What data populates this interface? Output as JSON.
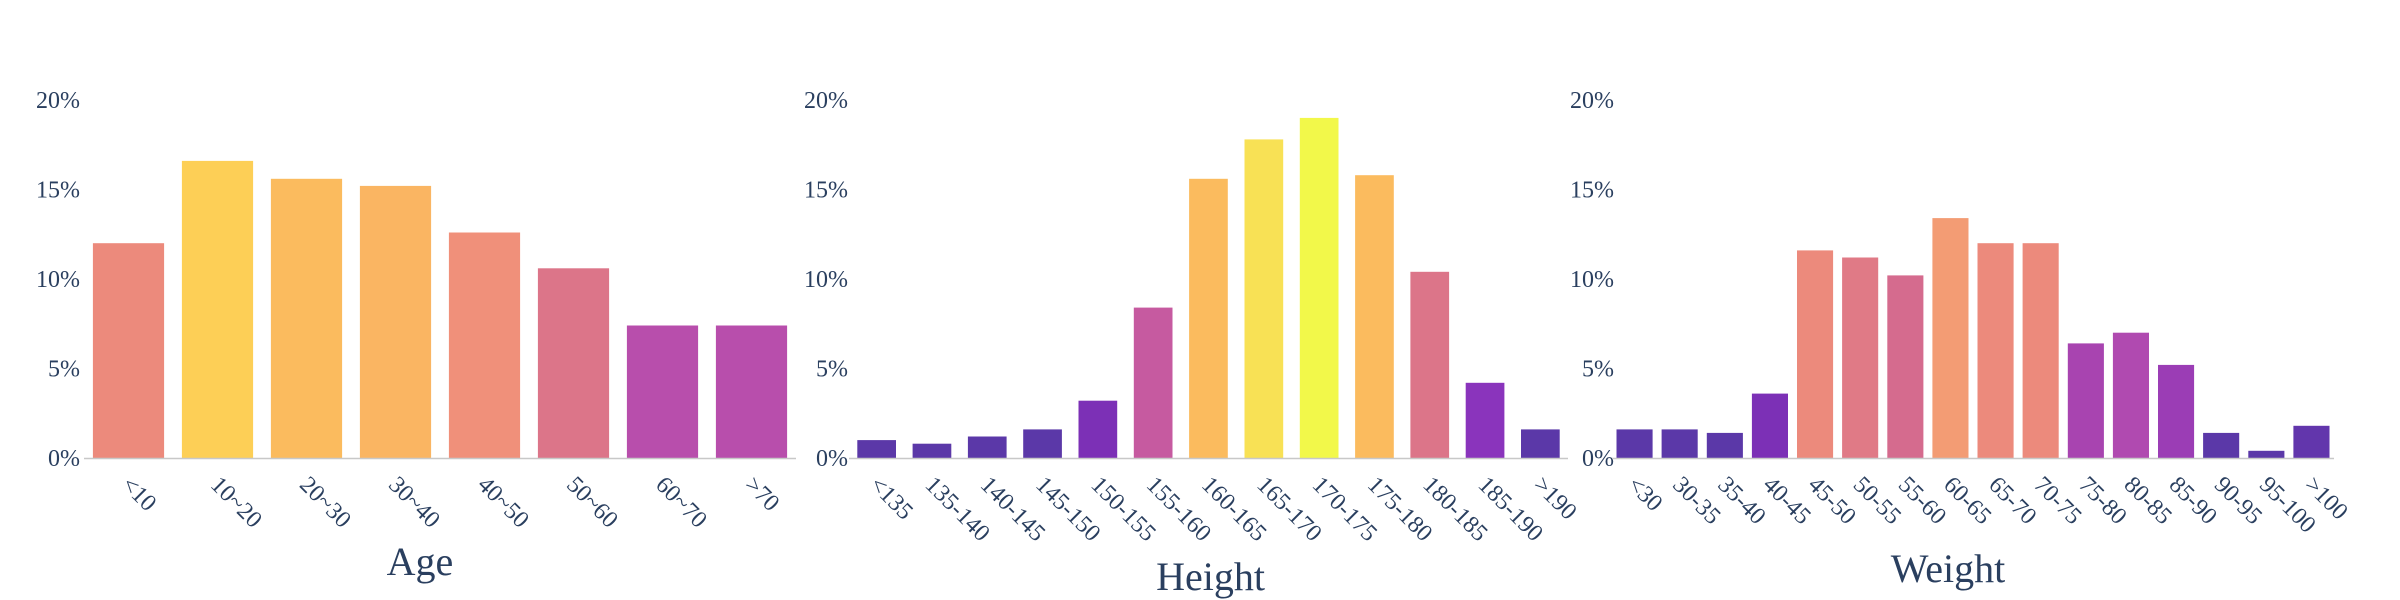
{
  "colors": {
    "text": "#2a3f5f",
    "axis": "#c8c8c8",
    "background": "#ffffff"
  },
  "chart_data": [
    {
      "type": "bar",
      "title": "",
      "xlabel": "Age",
      "ylabel": "",
      "ylim": [
        0,
        20
      ],
      "yticks": [
        "0%",
        "5%",
        "10%",
        "15%",
        "20%"
      ],
      "grid": false,
      "categories": [
        "<10",
        "10~20",
        "20~30",
        "30~40",
        "40~50",
        "50~60",
        "60~70",
        ">70"
      ],
      "values": [
        12.0,
        16.6,
        15.6,
        15.2,
        12.6,
        10.6,
        7.4,
        7.4
      ],
      "colors": [
        "#ec8a7c",
        "#fdcf56",
        "#fbbb5e",
        "#fab562",
        "#f0907a",
        "#dc7589",
        "#b84eac",
        "#b84eac"
      ]
    },
    {
      "type": "bar",
      "title": "",
      "xlabel": "Height",
      "ylabel": "",
      "ylim": [
        0,
        20
      ],
      "yticks": [
        "0%",
        "5%",
        "10%",
        "15%",
        "20%"
      ],
      "grid": false,
      "categories": [
        "<135",
        "135-140",
        "140-145",
        "145-150",
        "150-155",
        "155-160",
        "160-165",
        "165-170",
        "170-175",
        "175-180",
        "180-185",
        "185-190",
        ">190"
      ],
      "values": [
        1.0,
        0.8,
        1.2,
        1.6,
        3.2,
        8.4,
        15.6,
        17.8,
        19.0,
        15.8,
        10.4,
        4.2,
        1.6
      ],
      "colors": [
        "#5b38a8",
        "#5b38a8",
        "#5b38a8",
        "#5b38a8",
        "#7c30b6",
        "#c65aa0",
        "#fbbb5e",
        "#f8e155",
        "#f2f84a",
        "#fbbb5e",
        "#dc7589",
        "#8a34bc",
        "#5b38a8"
      ]
    },
    {
      "type": "bar",
      "title": "",
      "xlabel": "Weight",
      "ylabel": "",
      "ylim": [
        0,
        20
      ],
      "yticks": [
        "0%",
        "5%",
        "10%",
        "15%",
        "20%"
      ],
      "grid": false,
      "categories": [
        "<30",
        "30-35",
        "35-40",
        "40-45",
        "45-50",
        "50-55",
        "55-60",
        "60-65",
        "65-70",
        "70-75",
        "75-80",
        "80-85",
        "85-90",
        "90-95",
        "95-100",
        ">100"
      ],
      "values": [
        1.6,
        1.6,
        1.4,
        3.6,
        11.6,
        11.2,
        10.2,
        13.4,
        12.0,
        12.0,
        6.4,
        7.0,
        5.2,
        1.4,
        0.4,
        1.8
      ],
      "colors": [
        "#5b38a8",
        "#5b38a8",
        "#5b38a8",
        "#7c30b6",
        "#ec8a7c",
        "#e07a86",
        "#d56b8e",
        "#f39c74",
        "#ec8a7c",
        "#ec8a7c",
        "#a844b0",
        "#b04ab0",
        "#9b3db5",
        "#5b38a8",
        "#5b38a8",
        "#6236ac"
      ]
    }
  ]
}
